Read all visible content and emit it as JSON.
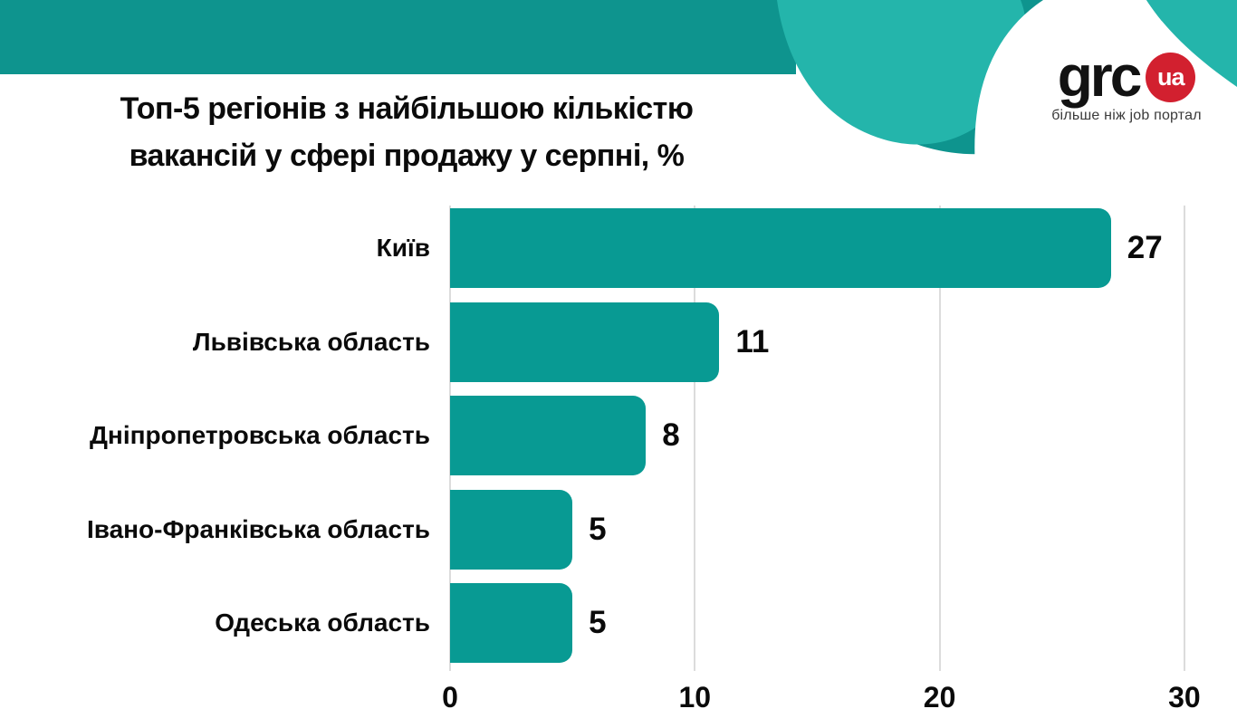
{
  "header": {
    "logo": {
      "name": "grc",
      "badge": "ua",
      "tagline": "більше ніж job портал"
    },
    "colors": {
      "band": "#0E948E",
      "wave_dark": "#0E948E",
      "wave_light": "#24B5AB",
      "badge_red": "#D2202F",
      "tagline_text": "#3A3A3A"
    }
  },
  "title": {
    "line1": "Топ-5 регіонів з найбільшою кількістю",
    "line2": "вакансій у сфері продажу у серпні, %"
  },
  "chart_data": {
    "type": "bar",
    "orientation": "horizontal",
    "title": "Топ-5 регіонів з найбільшою кількістю вакансій у сфері продажу у серпні, %",
    "categories": [
      "Київ",
      "Львівська область",
      "Дніпропетровська область",
      "Івано-Франківська область",
      "Одеська область"
    ],
    "values": [
      27,
      11,
      8,
      5,
      5
    ],
    "x_ticks": [
      0,
      10,
      20,
      30
    ],
    "xlim": [
      0,
      31
    ],
    "grid": true,
    "legend": false,
    "value_labels": true,
    "bar_color": "#089A93",
    "grid_color": "#DCDCDC",
    "label_color": "#0A0A0A"
  }
}
